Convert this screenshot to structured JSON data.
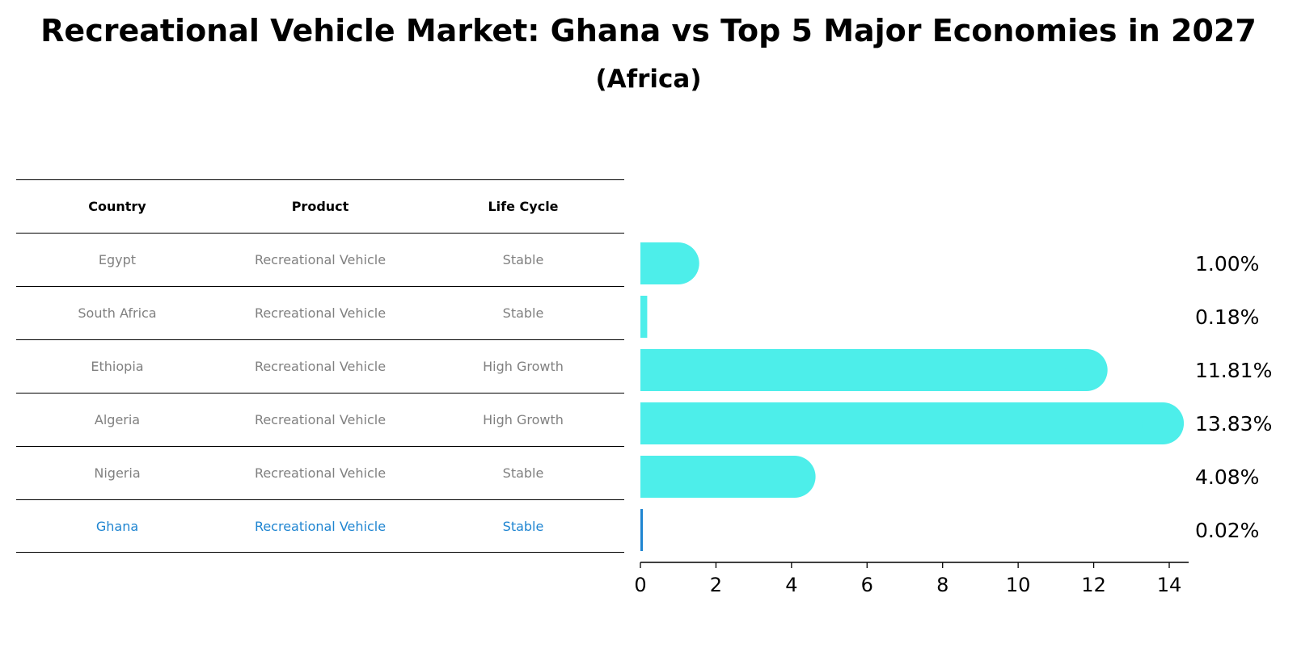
{
  "chart_data": {
    "type": "bar",
    "orientation": "horizontal",
    "title": "Recreational Vehicle Market: Ghana vs Top 5 Major Economies in 2027",
    "subtitle": "(Africa)",
    "table_headers": [
      "Country",
      "Product",
      "Life Cycle"
    ],
    "rows": [
      {
        "country": "Egypt",
        "product": "Recreational Vehicle",
        "life_cycle": "Stable",
        "value": 1.0,
        "label": "1.00%"
      },
      {
        "country": "South Africa",
        "product": "Recreational Vehicle",
        "life_cycle": "Stable",
        "value": 0.18,
        "label": "0.18%"
      },
      {
        "country": "Ethiopia",
        "product": "Recreational Vehicle",
        "life_cycle": "High Growth",
        "value": 11.81,
        "label": "11.81%"
      },
      {
        "country": "Algeria",
        "product": "Recreational Vehicle",
        "life_cycle": "High Growth",
        "value": 13.83,
        "label": "13.83%"
      },
      {
        "country": "Nigeria",
        "product": "Recreational Vehicle",
        "life_cycle": "Stable",
        "value": 4.08,
        "label": "4.08%"
      },
      {
        "country": "Ghana",
        "product": "Recreational Vehicle",
        "life_cycle": "Stable",
        "value": 0.02,
        "label": "0.02%",
        "highlight": true
      }
    ],
    "xticks": [
      "0",
      "2",
      "4",
      "6",
      "8",
      "10",
      "12",
      "14"
    ],
    "xlim": [
      0,
      14.5
    ],
    "bar_color": "#4deeea",
    "highlight_color": "#1f85d1"
  }
}
